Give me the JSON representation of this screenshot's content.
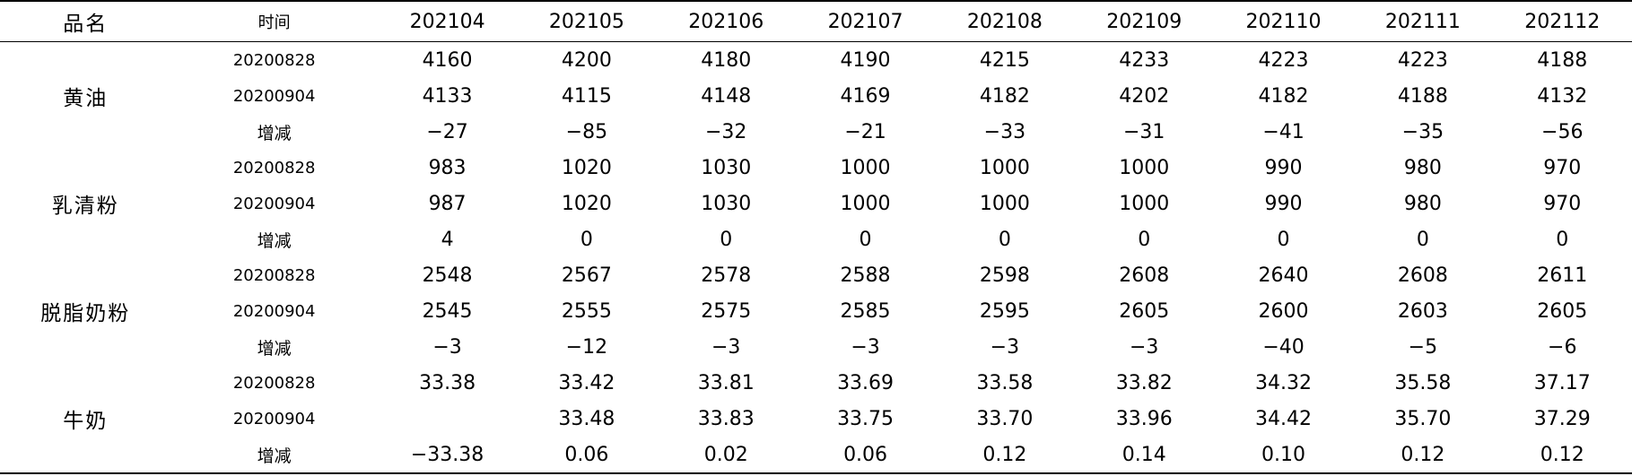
{
  "table": {
    "headers": [
      "品名",
      "时间",
      "202104",
      "202105",
      "202106",
      "202107",
      "202108",
      "202109",
      "202110",
      "202111",
      "202112"
    ],
    "groups": [
      {
        "name": "黄油",
        "rows": [
          {
            "label": "20200828",
            "values": [
              "4160",
              "4200",
              "4180",
              "4190",
              "4215",
              "4233",
              "4223",
              "4223",
              "4188"
            ]
          },
          {
            "label": "20200904",
            "values": [
              "4133",
              "4115",
              "4148",
              "4169",
              "4182",
              "4202",
              "4182",
              "4188",
              "4132"
            ]
          },
          {
            "label": "增减",
            "values": [
              "−27",
              "−85",
              "−32",
              "−21",
              "−33",
              "−31",
              "−41",
              "−35",
              "−56"
            ]
          }
        ]
      },
      {
        "name": "乳清粉",
        "rows": [
          {
            "label": "20200828",
            "values": [
              "983",
              "1020",
              "1030",
              "1000",
              "1000",
              "1000",
              "990",
              "980",
              "970"
            ]
          },
          {
            "label": "20200904",
            "values": [
              "987",
              "1020",
              "1030",
              "1000",
              "1000",
              "1000",
              "990",
              "980",
              "970"
            ]
          },
          {
            "label": "增减",
            "values": [
              "4",
              "0",
              "0",
              "0",
              "0",
              "0",
              "0",
              "0",
              "0"
            ]
          }
        ]
      },
      {
        "name": "脱脂奶粉",
        "rows": [
          {
            "label": "20200828",
            "values": [
              "2548",
              "2567",
              "2578",
              "2588",
              "2598",
              "2608",
              "2640",
              "2608",
              "2611"
            ]
          },
          {
            "label": "20200904",
            "values": [
              "2545",
              "2555",
              "2575",
              "2585",
              "2595",
              "2605",
              "2600",
              "2603",
              "2605"
            ]
          },
          {
            "label": "增减",
            "values": [
              "−3",
              "−12",
              "−3",
              "−3",
              "−3",
              "−3",
              "−40",
              "−5",
              "−6"
            ]
          }
        ]
      },
      {
        "name": "牛奶",
        "rows": [
          {
            "label": "20200828",
            "values": [
              "33.38",
              "33.42",
              "33.81",
              "33.69",
              "33.58",
              "33.82",
              "34.32",
              "35.58",
              "37.17"
            ]
          },
          {
            "label": "20200904",
            "values": [
              "",
              "33.48",
              "33.83",
              "33.75",
              "33.70",
              "33.96",
              "34.42",
              "35.70",
              "37.29"
            ]
          },
          {
            "label": "增减",
            "values": [
              "−33.38",
              "0.06",
              "0.02",
              "0.06",
              "0.12",
              "0.14",
              "0.10",
              "0.12",
              "0.12"
            ]
          }
        ]
      }
    ]
  }
}
